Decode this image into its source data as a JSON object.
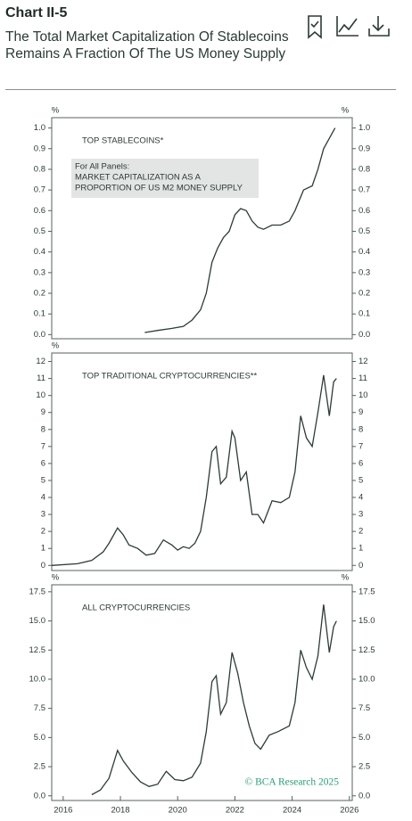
{
  "header": {
    "label": "Chart II-5",
    "title": "The Total Market Capitalization Of Stablecoins Remains A Fraction Of The US Money Supply"
  },
  "chart_data": [
    {
      "type": "line",
      "title": "TOP STABLECOINS*",
      "y_label": "%",
      "y2_label": "%",
      "note": [
        "For All Panels:",
        "MARKET CAPITALIZATION AS A",
        "PROPORTION OF US M2 MONEY SUPPLY"
      ],
      "color": "#2d3b36",
      "xlim": [
        2015.6,
        2026.1
      ],
      "ylim": [
        -0.02,
        1.05
      ],
      "yticks": [
        {
          "value": 0,
          "label": "0.0"
        },
        0.1,
        0.2,
        0.3,
        0.4,
        0.5,
        0.6,
        0.7,
        0.8,
        0.9,
        {
          "value": 1,
          "label": "1.0"
        }
      ],
      "y2lim": [
        -0.02,
        1.05
      ],
      "y2ticks": [
        {
          "value": 0,
          "label": "0.0"
        },
        0.1,
        0.2,
        0.3,
        0.4,
        0.5,
        0.6,
        0.7,
        0.8,
        0.9,
        {
          "value": 1,
          "label": "1.0"
        }
      ],
      "x": [
        2018.85,
        2019.3,
        2019.8,
        2020.2,
        2020.5,
        2020.8,
        2021.0,
        2021.2,
        2021.4,
        2021.6,
        2021.8,
        2022.0,
        2022.2,
        2022.4,
        2022.6,
        2022.8,
        2023.0,
        2023.3,
        2023.6,
        2023.9,
        2024.1,
        2024.4,
        2024.7,
        2024.9,
        2025.1,
        2025.3,
        2025.5
      ],
      "values": [
        0.01,
        0.02,
        0.03,
        0.04,
        0.07,
        0.12,
        0.2,
        0.35,
        0.42,
        0.47,
        0.5,
        0.58,
        0.61,
        0.6,
        0.55,
        0.52,
        0.51,
        0.53,
        0.53,
        0.55,
        0.6,
        0.7,
        0.72,
        0.8,
        0.9,
        0.95,
        1.0
      ]
    },
    {
      "type": "line",
      "title": "TOP TRADITIONAL CRYPTOCURRENCIES**",
      "y_label": "%",
      "color": "#2d3b36",
      "xlim": [
        2015.6,
        2026.1
      ],
      "ylim": [
        -0.3,
        12.5
      ],
      "yticks": [
        0,
        1,
        2,
        3,
        4,
        5,
        6,
        7,
        8,
        9,
        10,
        11,
        12
      ],
      "y2lim": [
        -0.3,
        12.5
      ],
      "y2ticks": [
        0,
        1,
        2,
        3,
        4,
        5,
        6,
        7,
        8,
        9,
        10,
        11,
        12
      ],
      "x": [
        2015.6,
        2016.5,
        2017.0,
        2017.4,
        2017.6,
        2017.9,
        2018.1,
        2018.3,
        2018.6,
        2018.9,
        2019.2,
        2019.5,
        2019.8,
        2020.0,
        2020.2,
        2020.4,
        2020.6,
        2020.8,
        2021.0,
        2021.2,
        2021.35,
        2021.5,
        2021.7,
        2021.9,
        2022.0,
        2022.2,
        2022.4,
        2022.6,
        2022.8,
        2023.0,
        2023.3,
        2023.6,
        2023.9,
        2024.1,
        2024.3,
        2024.5,
        2024.7,
        2024.9,
        2025.1,
        2025.3,
        2025.45,
        2025.55
      ],
      "values": [
        0,
        0.1,
        0.3,
        0.8,
        1.3,
        2.2,
        1.8,
        1.2,
        1.0,
        0.6,
        0.7,
        1.5,
        1.2,
        0.9,
        1.1,
        1.0,
        1.3,
        2.0,
        4.0,
        6.7,
        7.0,
        4.8,
        5.2,
        7.9,
        7.5,
        5.0,
        5.5,
        3.0,
        3.0,
        2.5,
        3.8,
        3.7,
        4.0,
        5.5,
        8.8,
        7.5,
        7.0,
        9.0,
        11.2,
        8.8,
        10.8,
        11.0
      ]
    },
    {
      "type": "line",
      "title": "ALL CRYPTOCURRENCIES",
      "y_label": "%",
      "y2_label": "%",
      "source": "© BCA Research 2025",
      "color": "#2d3b36",
      "xlim": [
        2015.6,
        2026.1
      ],
      "ylim": [
        -0.4,
        18.1
      ],
      "yticks": [
        {
          "value": 0,
          "label": "0.0"
        },
        2.5,
        {
          "value": 5,
          "label": "5.0"
        },
        7.5,
        {
          "value": 10,
          "label": "10.0"
        },
        12.5,
        {
          "value": 15,
          "label": "15.0"
        },
        17.5
      ],
      "y2lim": [
        -0.4,
        18.1
      ],
      "y2ticks": [
        {
          "value": 0,
          "label": "0.0"
        },
        2.5,
        {
          "value": 5,
          "label": "5.0"
        },
        7.5,
        {
          "value": 10,
          "label": "10.0"
        },
        12.5,
        {
          "value": 15,
          "label": "15.0"
        },
        17.5
      ],
      "xticks": [
        2016,
        2018,
        2020,
        2022,
        2024,
        2026
      ],
      "x": [
        2017.0,
        2017.3,
        2017.6,
        2017.9,
        2018.1,
        2018.4,
        2018.7,
        2019.0,
        2019.3,
        2019.6,
        2019.9,
        2020.2,
        2020.5,
        2020.8,
        2021.0,
        2021.2,
        2021.35,
        2021.5,
        2021.7,
        2021.9,
        2022.1,
        2022.3,
        2022.5,
        2022.7,
        2022.9,
        2023.2,
        2023.5,
        2023.9,
        2024.1,
        2024.3,
        2024.5,
        2024.7,
        2024.9,
        2025.1,
        2025.3,
        2025.45,
        2025.55
      ],
      "values": [
        0.1,
        0.5,
        1.5,
        3.9,
        3.0,
        2.0,
        1.2,
        0.8,
        1.0,
        2.1,
        1.4,
        1.3,
        1.6,
        2.8,
        5.5,
        9.8,
        10.3,
        7.0,
        8.0,
        12.3,
        10.5,
        8.0,
        6.0,
        4.5,
        4.0,
        5.2,
        5.5,
        6.0,
        8.0,
        12.5,
        11.0,
        10.0,
        12.0,
        16.4,
        12.3,
        14.5,
        15.0
      ]
    }
  ]
}
